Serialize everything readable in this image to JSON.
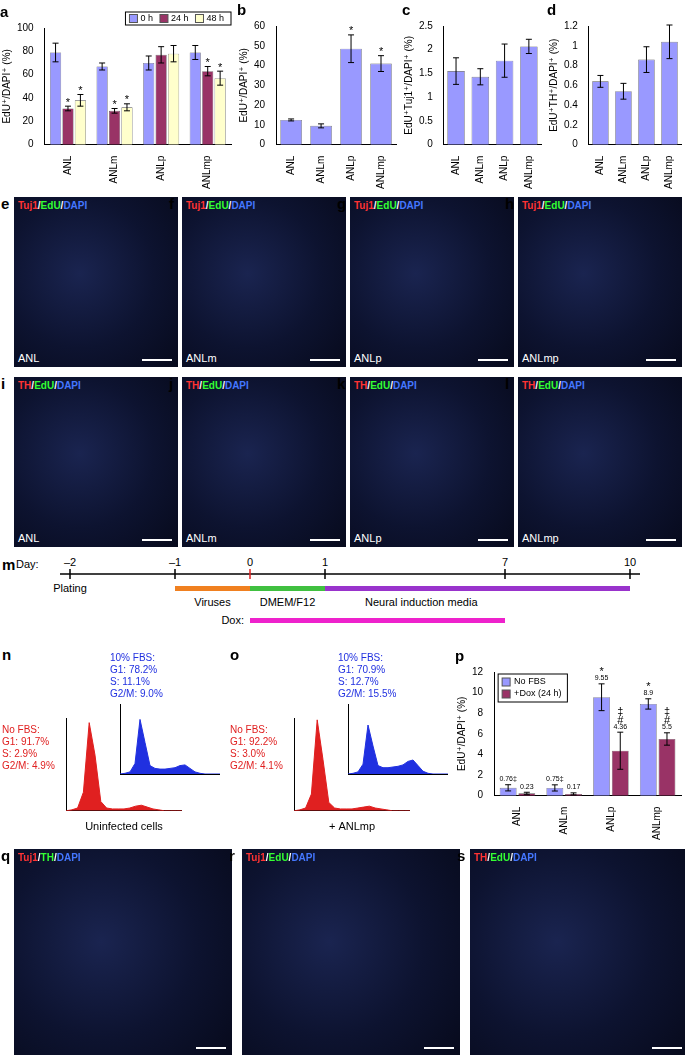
{
  "chart_data": [
    {
      "type": "bar",
      "title": "a",
      "ylabel": "EdU⁺/DAPI⁺ (%)",
      "categories": [
        "ANL",
        "ANLm",
        "ANLp",
        "ANLmp"
      ],
      "series": [
        {
          "name": "0 h",
          "color": "#9999ff",
          "values": [
            79,
            67,
            70,
            79
          ],
          "errors": [
            8,
            3,
            6,
            6
          ],
          "annotations": [
            null,
            null,
            null,
            null
          ]
        },
        {
          "name": "24 h",
          "color": "#993366",
          "values": [
            31,
            29,
            77,
            63
          ],
          "errors": [
            2,
            2,
            7,
            4
          ],
          "annotations": [
            "*",
            "*",
            null,
            "*"
          ]
        },
        {
          "name": "48 h",
          "color": "#ffffcc",
          "values": [
            38,
            32,
            78,
            57
          ],
          "errors": [
            5,
            3,
            7,
            6
          ],
          "annotations": [
            "*",
            "*",
            null,
            "*"
          ]
        }
      ],
      "ylim": [
        0,
        100
      ],
      "yticks": [
        0,
        20,
        40,
        60,
        80,
        100
      ],
      "grid": false,
      "legend": "upper right"
    },
    {
      "type": "bar",
      "title": "b",
      "ylabel": "EdU⁺/DAPI⁺ (%)",
      "categories": [
        "ANL",
        "ANLm",
        "ANLp",
        "ANLmp"
      ],
      "values": [
        12.5,
        9.5,
        48.5,
        41
      ],
      "errors": [
        0.5,
        1,
        7,
        4
      ],
      "annotations": [
        null,
        null,
        "*",
        "*"
      ],
      "color": "#9999ff",
      "ylim": [
        0,
        60
      ],
      "yticks": [
        0,
        10,
        20,
        30,
        40,
        50,
        60
      ],
      "grid": false
    },
    {
      "type": "bar",
      "title": "c",
      "ylabel": "EdU⁺Tuj1⁺/DAPI⁺ (%)",
      "categories": [
        "ANL",
        "ANLm",
        "ANLp",
        "ANLmp"
      ],
      "values": [
        1.55,
        1.43,
        1.77,
        2.07
      ],
      "errors": [
        0.28,
        0.17,
        0.35,
        0.15
      ],
      "color": "#9999ff",
      "ylim": [
        0,
        2.5
      ],
      "yticks": [
        0,
        0.5,
        1,
        1.5,
        2,
        2.5
      ],
      "grid": false
    },
    {
      "type": "bar",
      "title": "d",
      "ylabel": "EdU⁺TH⁺/DAPI⁺ (%)",
      "categories": [
        "ANL",
        "ANLm",
        "ANLp",
        "ANLmp"
      ],
      "values": [
        0.64,
        0.54,
        0.86,
        1.04
      ],
      "errors": [
        0.06,
        0.08,
        0.13,
        0.17
      ],
      "color": "#9999ff",
      "ylim": [
        0,
        1.2
      ],
      "yticks": [
        0,
        0.2,
        0.4,
        0.6,
        0.8,
        1,
        1.2
      ],
      "grid": false
    },
    {
      "type": "area",
      "title": "n",
      "xlabel": "Uninfected cells",
      "x": [
        0,
        5,
        10,
        15,
        20,
        25,
        30,
        35,
        40,
        45,
        50,
        55,
        60,
        65,
        70,
        75,
        80,
        85,
        90,
        95,
        100
      ],
      "series": [
        {
          "color": "#e02020",
          "values": [
            0,
            1,
            3,
            20,
            95,
            60,
            10,
            3,
            2,
            2,
            2,
            3,
            5,
            6,
            4,
            2,
            1,
            0,
            0,
            0,
            0
          ]
        },
        {
          "color": "#2030e0",
          "values": [
            0,
            1,
            3,
            15,
            78,
            45,
            12,
            8,
            7,
            7,
            8,
            9,
            12,
            13,
            8,
            3,
            1,
            0,
            0,
            0,
            0
          ]
        }
      ],
      "annotations": [
        {
          "color": "#e02020",
          "text": [
            "No FBS:",
            "G1: 91.7%",
            "S: 2.9%",
            "G2/M: 4.9%"
          ]
        },
        {
          "color": "#2030e0",
          "text": [
            "10% FBS:",
            "G1: 78.2%",
            "S: 11.1%",
            "G2/M: 9.0%"
          ]
        }
      ],
      "xlim": [
        0,
        100
      ],
      "ylim": [
        0,
        100
      ],
      "tick_labels": false,
      "grid": false
    },
    {
      "type": "area",
      "title": "o",
      "xlabel": "+ ANLmp",
      "x": [
        0,
        5,
        10,
        15,
        20,
        25,
        30,
        35,
        40,
        45,
        50,
        55,
        60,
        65,
        70,
        75,
        80,
        85,
        90,
        95,
        100
      ],
      "series": [
        {
          "color": "#e02020",
          "values": [
            0,
            1,
            3,
            18,
            98,
            55,
            9,
            3,
            2,
            2,
            2,
            3,
            4,
            5,
            3,
            2,
            1,
            0,
            0,
            0,
            0
          ]
        },
        {
          "color": "#2030e0",
          "values": [
            0,
            1,
            3,
            14,
            70,
            40,
            12,
            9,
            9,
            10,
            11,
            13,
            18,
            20,
            12,
            4,
            1,
            0,
            0,
            0,
            0
          ]
        }
      ],
      "annotations": [
        {
          "color": "#e02020",
          "text": [
            "No FBS:",
            "G1: 92.2%",
            "S: 3.0%",
            "G2/M: 4.1%"
          ]
        },
        {
          "color": "#2030e0",
          "text": [
            "10% FBS:",
            "G1: 70.9%",
            "S: 12.7%",
            "G2/M: 15.5%"
          ]
        }
      ],
      "xlim": [
        0,
        100
      ],
      "ylim": [
        0,
        100
      ],
      "tick_labels": false,
      "grid": false
    },
    {
      "type": "bar",
      "title": "p",
      "ylabel": "EdU⁺/DAPI⁺ (%)",
      "categories": [
        "ANL",
        "ANLm",
        "ANLp",
        "ANLmp"
      ],
      "series": [
        {
          "name": "No FBS",
          "color": "#9999ff",
          "values": [
            0.76,
            0.75,
            9.55,
            8.9
          ],
          "errors": [
            0.3,
            0.3,
            1.3,
            0.5
          ],
          "value_labels": [
            "0.76‡",
            "0.75‡",
            "9.55",
            "8.9"
          ],
          "annotations": [
            null,
            null,
            "*",
            "*"
          ]
        },
        {
          "name": "+Dox (24 h)",
          "color": "#993366",
          "values": [
            0.23,
            0.17,
            4.36,
            5.5
          ],
          "errors": [
            0.1,
            0.1,
            1.8,
            0.6
          ],
          "value_labels": [
            "0.23",
            "0.17",
            "4.36",
            "5.5"
          ],
          "annotations": [
            null,
            null,
            [
              "‡",
              "#"
            ],
            [
              "‡",
              "#"
            ]
          ]
        }
      ],
      "ylim": [
        0,
        12
      ],
      "yticks": [
        0,
        2,
        4,
        6,
        8,
        10,
        12
      ],
      "grid": false,
      "legend": "upper left",
      "data_labels": true
    }
  ],
  "timeline": {
    "title": "m",
    "label": "Day:",
    "ticks": [
      {
        "value": -2,
        "label": "–2"
      },
      {
        "value": -1,
        "label": "–1"
      },
      0,
      1,
      7,
      10
    ],
    "events": [
      {
        "day": -2,
        "label": "Plating"
      }
    ],
    "segments": [
      {
        "from": -1,
        "to": 0,
        "label": "Viruses",
        "color": "#f08020"
      },
      {
        "from": 0,
        "to": 1,
        "label": "DMEM/F12",
        "color": "#40c040"
      },
      {
        "from": 1,
        "to": 10,
        "label": "Neural induction media",
        "color": "#9933cc"
      }
    ],
    "dox": {
      "from": 0,
      "to": 7,
      "label": "Dox:",
      "color": "#ee22cc"
    }
  },
  "image_panels": [
    {
      "title": "e",
      "sample": "ANL",
      "stain": [
        {
          "text": "Tuj1",
          "color": "#ff3333"
        },
        {
          "text": "/",
          "color": "#ffffff"
        },
        {
          "text": "EdU",
          "color": "#33ff33"
        },
        {
          "text": "/",
          "color": "#ffffff"
        },
        {
          "text": "DAPI",
          "color": "#4477ff"
        }
      ]
    },
    {
      "title": "f",
      "sample": "ANLm",
      "stain": [
        {
          "text": "Tuj1",
          "color": "#ff3333"
        },
        {
          "text": "/",
          "color": "#ffffff"
        },
        {
          "text": "EdU",
          "color": "#33ff33"
        },
        {
          "text": "/",
          "color": "#ffffff"
        },
        {
          "text": "DAPI",
          "color": "#4477ff"
        }
      ]
    },
    {
      "title": "g",
      "sample": "ANLp",
      "stain": [
        {
          "text": "Tuj1",
          "color": "#ff3333"
        },
        {
          "text": "/",
          "color": "#ffffff"
        },
        {
          "text": "EdU",
          "color": "#33ff33"
        },
        {
          "text": "/",
          "color": "#ffffff"
        },
        {
          "text": "DAPI",
          "color": "#4477ff"
        }
      ]
    },
    {
      "title": "h",
      "sample": "ANLmp",
      "stain": [
        {
          "text": "Tuj1",
          "color": "#ff3333"
        },
        {
          "text": "/",
          "color": "#ffffff"
        },
        {
          "text": "EdU",
          "color": "#33ff33"
        },
        {
          "text": "/",
          "color": "#ffffff"
        },
        {
          "text": "DAPI",
          "color": "#4477ff"
        }
      ]
    },
    {
      "title": "i",
      "sample": "ANL",
      "stain": [
        {
          "text": "TH",
          "color": "#ff3333"
        },
        {
          "text": "/",
          "color": "#ffffff"
        },
        {
          "text": "EdU",
          "color": "#33ff33"
        },
        {
          "text": "/",
          "color": "#ffffff"
        },
        {
          "text": "DAPI",
          "color": "#4477ff"
        }
      ]
    },
    {
      "title": "j",
      "sample": "ANLm",
      "stain": [
        {
          "text": "TH",
          "color": "#ff3333"
        },
        {
          "text": "/",
          "color": "#ffffff"
        },
        {
          "text": "EdU",
          "color": "#33ff33"
        },
        {
          "text": "/",
          "color": "#ffffff"
        },
        {
          "text": "DAPI",
          "color": "#4477ff"
        }
      ]
    },
    {
      "title": "k",
      "sample": "ANLp",
      "stain": [
        {
          "text": "TH",
          "color": "#ff3333"
        },
        {
          "text": "/",
          "color": "#ffffff"
        },
        {
          "text": "EdU",
          "color": "#33ff33"
        },
        {
          "text": "/",
          "color": "#ffffff"
        },
        {
          "text": "DAPI",
          "color": "#4477ff"
        }
      ]
    },
    {
      "title": "l",
      "sample": "ANLmp",
      "stain": [
        {
          "text": "TH",
          "color": "#ff3333"
        },
        {
          "text": "/",
          "color": "#ffffff"
        },
        {
          "text": "EdU",
          "color": "#33ff33"
        },
        {
          "text": "/",
          "color": "#ffffff"
        },
        {
          "text": "DAPI",
          "color": "#4477ff"
        }
      ]
    },
    {
      "title": "q",
      "stain": [
        {
          "text": "Tuj1",
          "color": "#ff3333"
        },
        {
          "text": "/",
          "color": "#ffffff"
        },
        {
          "text": "TH",
          "color": "#33ff33"
        },
        {
          "text": "/",
          "color": "#ffffff"
        },
        {
          "text": "DAPI",
          "color": "#4477ff"
        }
      ]
    },
    {
      "title": "r",
      "stain": [
        {
          "text": "Tuj1",
          "color": "#ff3333"
        },
        {
          "text": "/",
          "color": "#ffffff"
        },
        {
          "text": "EdU",
          "color": "#33ff33"
        },
        {
          "text": "/",
          "color": "#ffffff"
        },
        {
          "text": "DAPI",
          "color": "#4477ff"
        }
      ]
    },
    {
      "title": "s",
      "stain": [
        {
          "text": "TH",
          "color": "#ff3333"
        },
        {
          "text": "/",
          "color": "#ffffff"
        },
        {
          "text": "EdU",
          "color": "#33ff33"
        },
        {
          "text": "/",
          "color": "#ffffff"
        },
        {
          "text": "DAPI",
          "color": "#4477ff"
        }
      ]
    }
  ]
}
